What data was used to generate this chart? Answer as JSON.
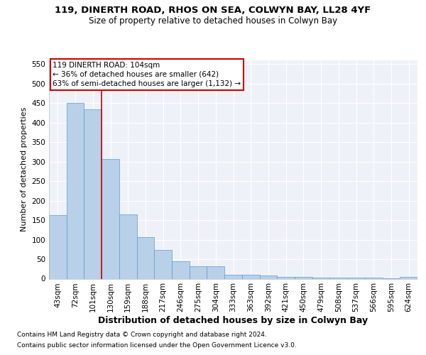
{
  "title1": "119, DINERTH ROAD, RHOS ON SEA, COLWYN BAY, LL28 4YF",
  "title2": "Size of property relative to detached houses in Colwyn Bay",
  "xlabel": "Distribution of detached houses by size in Colwyn Bay",
  "ylabel": "Number of detached properties",
  "categories": [
    "43sqm",
    "72sqm",
    "101sqm",
    "130sqm",
    "159sqm",
    "188sqm",
    "217sqm",
    "246sqm",
    "275sqm",
    "304sqm",
    "333sqm",
    "363sqm",
    "392sqm",
    "421sqm",
    "450sqm",
    "479sqm",
    "508sqm",
    "537sqm",
    "566sqm",
    "595sqm",
    "624sqm"
  ],
  "values": [
    163,
    450,
    435,
    307,
    165,
    106,
    73,
    45,
    32,
    32,
    10,
    10,
    8,
    5,
    4,
    3,
    3,
    2,
    2,
    1,
    4
  ],
  "bar_color": "#b8d0e8",
  "bar_edge_color": "#5b9bd5",
  "bar_edge_width": 0.5,
  "annotation_text_line1": "119 DINERTH ROAD: 104sqm",
  "annotation_text_line2": "← 36% of detached houses are smaller (642)",
  "annotation_text_line3": "63% of semi-detached houses are larger (1,132) →",
  "annotation_box_color": "#ffffff",
  "annotation_box_edge_color": "#cc0000",
  "red_line_color": "#cc0000",
  "red_line_x": 2.5,
  "ylim": [
    0,
    560
  ],
  "yticks": [
    0,
    50,
    100,
    150,
    200,
    250,
    300,
    350,
    400,
    450,
    500,
    550
  ],
  "footnote1": "Contains HM Land Registry data © Crown copyright and database right 2024.",
  "footnote2": "Contains public sector information licensed under the Open Government Licence v3.0.",
  "bg_color": "#eef2f8",
  "grid_color": "#ffffff",
  "title_fontsize": 9.5,
  "subtitle_fontsize": 8.5,
  "ylabel_fontsize": 8,
  "xlabel_fontsize": 9,
  "tick_fontsize": 7.5,
  "annot_fontsize": 7.5,
  "footnote_fontsize": 6.5
}
